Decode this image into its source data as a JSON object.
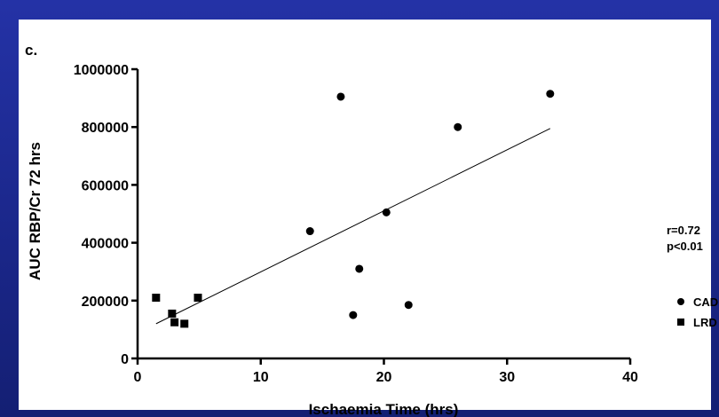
{
  "chart_data": {
    "type": "scatter",
    "panel_label": "c.",
    "xlabel": "Ischaemia Time (hrs)",
    "ylabel": "AUC RBP/Cr 72 hrs",
    "xlim": [
      0,
      40
    ],
    "ylim": [
      0,
      1000000
    ],
    "x_ticks": [
      0,
      10,
      20,
      30,
      40
    ],
    "x_tick_labels": [
      "0",
      "10",
      "20",
      "30",
      "40"
    ],
    "y_ticks": [
      0,
      200000,
      400000,
      600000,
      800000,
      1000000
    ],
    "y_tick_labels": [
      "0",
      "200000",
      "400000",
      "600000",
      "800000",
      "1000000"
    ],
    "grid": false,
    "legend_position": "right",
    "series": [
      {
        "name": "CAD",
        "marker": "circle",
        "points": [
          {
            "x": 14.0,
            "y": 440000
          },
          {
            "x": 16.5,
            "y": 905000
          },
          {
            "x": 17.5,
            "y": 150000
          },
          {
            "x": 18.0,
            "y": 310000
          },
          {
            "x": 20.2,
            "y": 505000
          },
          {
            "x": 22.0,
            "y": 185000
          },
          {
            "x": 26.0,
            "y": 800000
          },
          {
            "x": 33.5,
            "y": 915000
          }
        ]
      },
      {
        "name": "LRD",
        "marker": "square",
        "points": [
          {
            "x": 1.5,
            "y": 210000
          },
          {
            "x": 2.8,
            "y": 155000
          },
          {
            "x": 3.0,
            "y": 125000
          },
          {
            "x": 3.8,
            "y": 120000
          },
          {
            "x": 4.9,
            "y": 210000
          }
        ]
      }
    ],
    "fit_line": {
      "x": [
        1.5,
        33.5
      ],
      "y": [
        120000,
        795000
      ]
    },
    "annotations": [
      "r=0.72",
      "p<0.01"
    ]
  }
}
